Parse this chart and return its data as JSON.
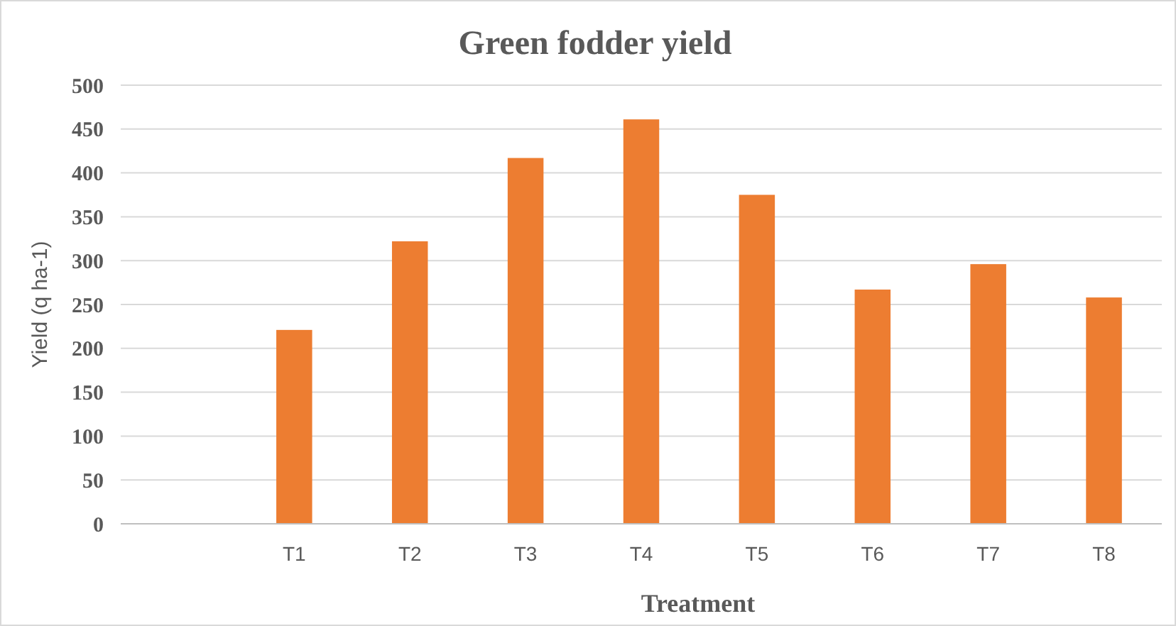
{
  "chart_data": {
    "type": "bar",
    "title": "Green  fodder yield",
    "xlabel": "Treatment",
    "ylabel": "Yield (q ha-1)",
    "categories": [
      null,
      "T1",
      "T2",
      "T3",
      "T4",
      "T5",
      "T6",
      "T7",
      "T8"
    ],
    "values": [
      null,
      221,
      322,
      417,
      461,
      375,
      267,
      296,
      258
    ],
    "color": "#ed7d31",
    "ylim": [
      0,
      500
    ],
    "yticks": [
      0,
      50,
      100,
      150,
      200,
      250,
      300,
      350,
      400,
      450,
      500
    ],
    "grid": "y"
  }
}
